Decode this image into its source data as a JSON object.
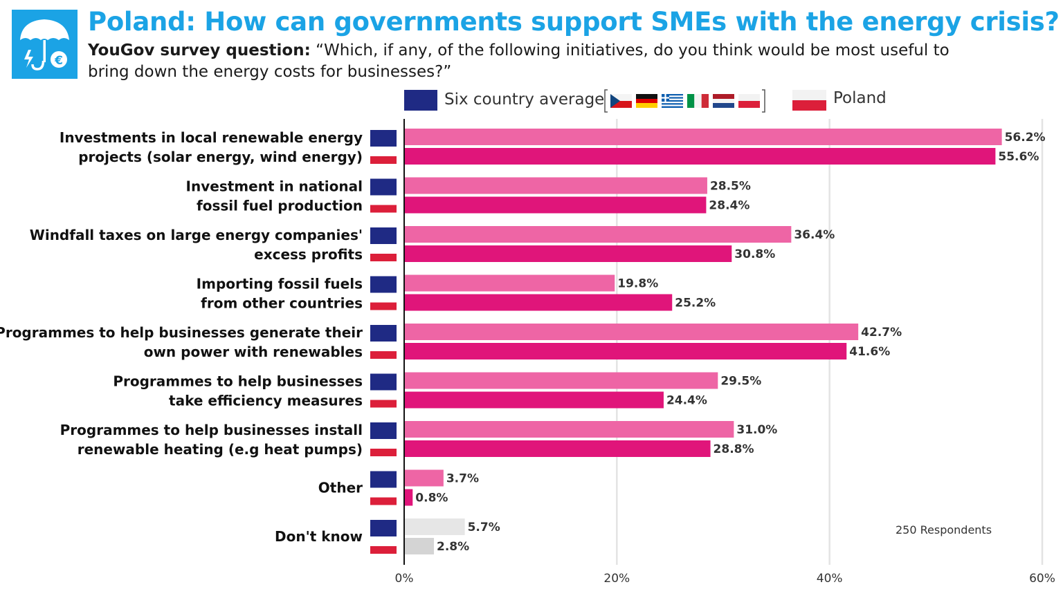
{
  "header": {
    "title": "Poland: How can governments support SMEs with the energy crisis?",
    "subtitle_bold": "YouGov survey question:",
    "subtitle_rest": " “Which, if any, of the following initiatives, do you think would be most useful to bring down the energy costs for businesses?”",
    "logo_icon": "umbrella-energy-euro-icon"
  },
  "legend": {
    "average_label": "Six country average",
    "country_label": "Poland",
    "flags": [
      "czech-flag-icon",
      "german-flag-icon",
      "greek-flag-icon",
      "italian-flag-icon",
      "dutch-flag-icon",
      "polish-flag-icon"
    ]
  },
  "note": "250 Respondents",
  "colors": {
    "average_bar": "#ee65a5",
    "country_bar": "#e0157a",
    "dontknow_average_bar": "#e6e6e6",
    "dontknow_country_bar": "#d4d4d4",
    "eu_blue": "#1f2a84",
    "pl_red": "#dc1f3a",
    "accent": "#1ba3e5"
  },
  "chart_data": {
    "type": "bar",
    "orientation": "horizontal",
    "categories": [
      [
        "Investments in local renewable energy",
        "projects (solar energy, wind energy)"
      ],
      [
        "Investment in national",
        "fossil fuel production"
      ],
      [
        "Windfall taxes on large energy companies'",
        "excess profits"
      ],
      [
        "Importing fossil fuels",
        "from other countries"
      ],
      [
        "Programmes to help businesses generate their",
        "own power with renewables"
      ],
      [
        "Programmes to help businesses",
        "take efficiency measures"
      ],
      [
        "Programmes to help businesses install",
        "renewable heating (e.g heat pumps)"
      ],
      [
        "Other"
      ],
      [
        "Don't know"
      ]
    ],
    "series": [
      {
        "name": "Six country average",
        "values": [
          56.2,
          28.5,
          36.4,
          19.8,
          42.7,
          29.5,
          31.0,
          3.7,
          5.7
        ]
      },
      {
        "name": "Poland",
        "values": [
          55.6,
          28.4,
          30.8,
          25.2,
          41.6,
          24.4,
          28.8,
          0.8,
          2.8
        ]
      }
    ],
    "value_labels": {
      "average": [
        "56.2%",
        "28.5%",
        "36.4%",
        "19.8%",
        "42.7%",
        "29.5%",
        "31.0%",
        "3.7%",
        "5.7%"
      ],
      "poland": [
        "55.6%",
        "28.4%",
        "30.8%",
        "25.2%",
        "41.6%",
        "24.4%",
        "28.8%",
        "0.8%",
        "2.8%"
      ]
    },
    "xlim": [
      0,
      60
    ],
    "ticks": [
      0,
      20,
      40,
      60
    ],
    "tick_labels": [
      "0%",
      "20%",
      "40%",
      "60%"
    ],
    "grid": true,
    "legend_position": "top"
  }
}
